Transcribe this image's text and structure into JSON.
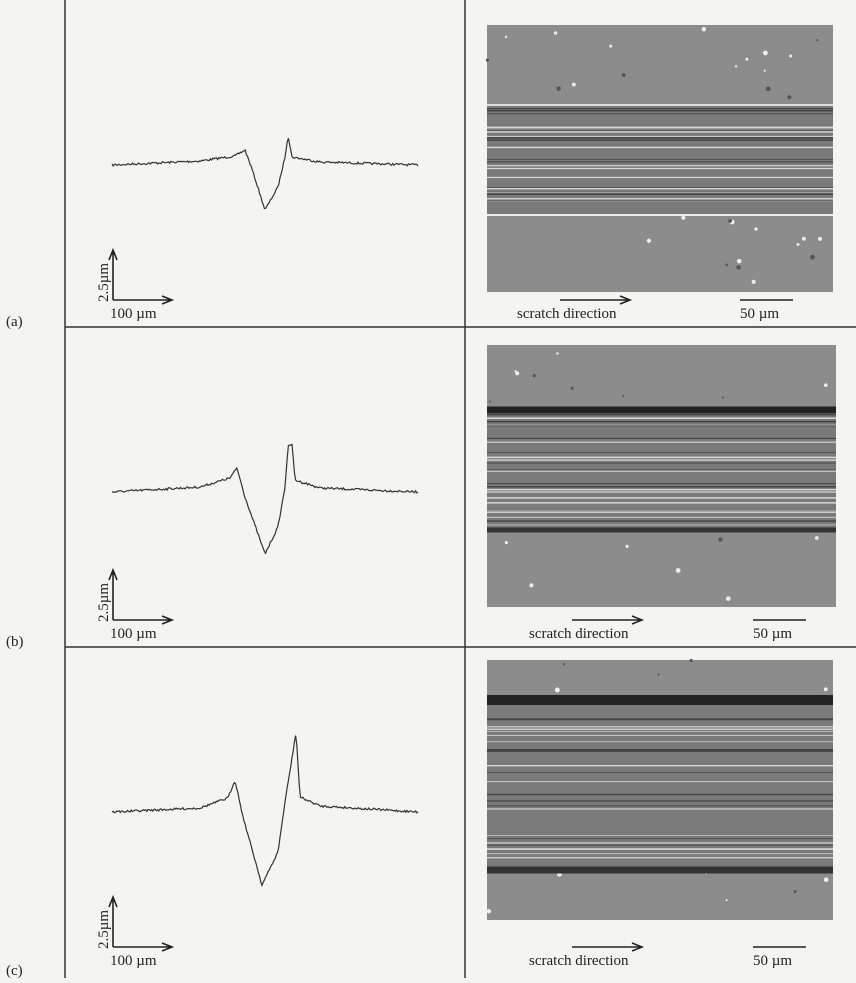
{
  "panels": [
    {
      "label": "(a)",
      "scale_vertical": "2.5µm",
      "scale_horizontal": "100 µm",
      "caption": "scratch direction",
      "scale_bar": "50 µm"
    },
    {
      "label": "(b)",
      "scale_vertical": "2.5µm",
      "scale_horizontal": "100 µm",
      "caption": "scratch direction",
      "scale_bar": "50 µm"
    },
    {
      "label": "(c)",
      "scale_vertical": "2.5µm",
      "scale_horizontal": "100 µm",
      "caption": "scratch direction",
      "scale_bar": "50 µm"
    }
  ]
}
